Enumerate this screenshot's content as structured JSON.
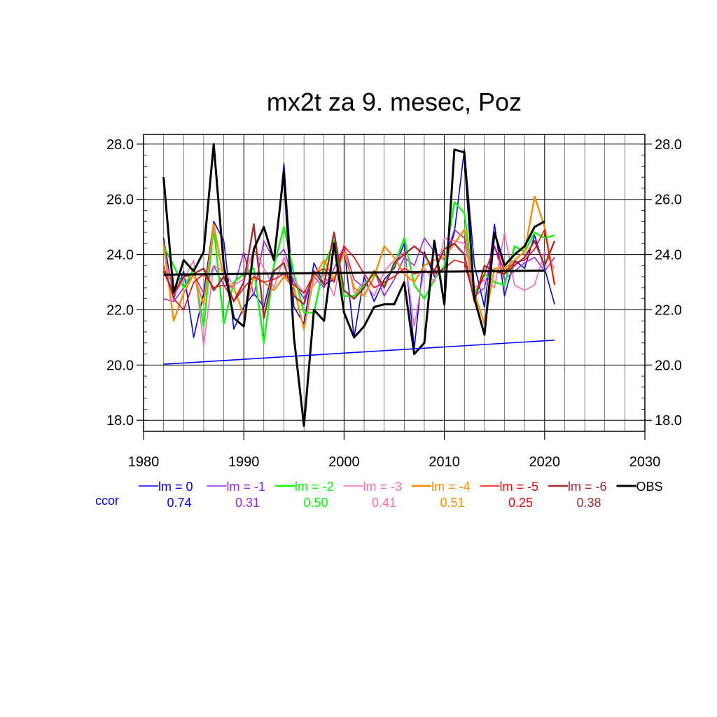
{
  "chart_data": {
    "type": "line",
    "title": "mx2t za 9. mesec, Poz",
    "xlabel": "",
    "ylabel": "",
    "xlim": [
      1980,
      2030
    ],
    "ylim": [
      17.6,
      28.35
    ],
    "x_ticks": [
      "1980",
      "1990",
      "2000",
      "2010",
      "2020",
      "2030"
    ],
    "y_ticks": [
      "18.0",
      "20.0",
      "22.0",
      "24.0",
      "26.0",
      "28.0"
    ],
    "grid": true,
    "legend_position": "bottom",
    "ccor_label": "ccor",
    "series": [
      {
        "name": "lm = 0",
        "color": "#0000ff",
        "ccor": "0.74",
        "width": 1.6,
        "x": [
          1982,
          1983,
          1984,
          1985,
          1986,
          1987,
          1988,
          1989,
          1990,
          1991,
          1992,
          1993,
          1994,
          1995,
          1996,
          1997,
          1998,
          1999,
          2000,
          2001,
          2002,
          2003,
          2004,
          2005,
          2006,
          2007,
          2008,
          2009,
          2010,
          2011,
          2012,
          2013,
          2014,
          2015,
          2016,
          2017,
          2018,
          2019,
          2020,
          2021
        ],
        "y": [
          24.6,
          22.4,
          23.4,
          21.0,
          22.6,
          25.2,
          24.5,
          21.3,
          22.1,
          22.6,
          22.1,
          23.6,
          27.3,
          22.1,
          21.5,
          23.7,
          22.9,
          23.1,
          24.3,
          21.0,
          23.2,
          22.3,
          23.1,
          23.5,
          24.4,
          20.6,
          24.1,
          23.2,
          23.5,
          24.8,
          27.8,
          23.6,
          22.1,
          25.1,
          22.5,
          23.8,
          23.5,
          24.7,
          23.5,
          22.2
        ]
      },
      {
        "name": "lm = -1",
        "color": "#a020f0",
        "ccor": "0.31",
        "width": 1.6,
        "x": [
          1982,
          1983,
          1984,
          1985,
          1986,
          1987,
          1988,
          1989,
          1990,
          1991,
          1992,
          1993,
          1994,
          1995,
          1996,
          1997,
          1998,
          1999,
          2000,
          2001,
          2002,
          2003,
          2004,
          2005,
          2006,
          2007,
          2008,
          2009,
          2010,
          2011,
          2012,
          2013,
          2014,
          2015,
          2016,
          2017,
          2018,
          2019,
          2020,
          2021
        ],
        "y": [
          22.4,
          22.3,
          22.8,
          23.3,
          22.6,
          23.6,
          22.9,
          22.8,
          24.1,
          22.5,
          24.5,
          23.8,
          24.2,
          23.0,
          22.4,
          23.2,
          22.8,
          23.5,
          24.3,
          23.1,
          22.8,
          23.4,
          22.5,
          23.1,
          23.9,
          23.6,
          24.6,
          24.1,
          23.8,
          24.9,
          24.6,
          22.5,
          22.8,
          24.3,
          23.1,
          23.4,
          23.7,
          23.9,
          23.4,
          23.9
        ]
      },
      {
        "name": "lm = -2",
        "color": "#00ff00",
        "ccor": "0.50",
        "width": 2.4,
        "x": [
          1982,
          1983,
          1984,
          1985,
          1986,
          1987,
          1988,
          1989,
          1990,
          1991,
          1992,
          1993,
          1994,
          1995,
          1996,
          1997,
          1998,
          1999,
          2000,
          2001,
          2002,
          2003,
          2004,
          2005,
          2006,
          2007,
          2008,
          2009,
          2010,
          2011,
          2012,
          2013,
          2014,
          2015,
          2016,
          2017,
          2018,
          2019,
          2020,
          2021
        ],
        "y": [
          24.3,
          23.6,
          22.8,
          23.5,
          21.4,
          25.0,
          21.5,
          23.0,
          23.3,
          23.5,
          20.8,
          23.6,
          25.0,
          23.3,
          21.9,
          21.9,
          23.6,
          24.5,
          22.5,
          22.5,
          22.9,
          23.3,
          22.9,
          23.6,
          24.6,
          22.9,
          22.4,
          23.1,
          23.6,
          25.9,
          25.5,
          22.6,
          23.3,
          23.0,
          22.9,
          24.3,
          24.1,
          24.8,
          24.6,
          24.7
        ]
      },
      {
        "name": "lm = -3",
        "color": "#ff69b4",
        "ccor": "0.41",
        "width": 1.6,
        "x": [
          1982,
          1983,
          1984,
          1985,
          1986,
          1987,
          1988,
          1989,
          1990,
          1991,
          1992,
          1993,
          1994,
          1995,
          1996,
          1997,
          1998,
          1999,
          2000,
          2001,
          2002,
          2003,
          2004,
          2005,
          2006,
          2007,
          2008,
          2009,
          2010,
          2011,
          2012,
          2013,
          2014,
          2015,
          2016,
          2017,
          2018,
          2019,
          2020,
          2021
        ],
        "y": [
          24.2,
          22.5,
          23.1,
          23.8,
          20.7,
          23.6,
          23.4,
          22.9,
          23.1,
          24.2,
          23.5,
          22.8,
          23.9,
          23.1,
          22.6,
          22.9,
          23.3,
          22.5,
          24.4,
          22.6,
          23.0,
          22.5,
          23.4,
          23.8,
          24.1,
          21.4,
          23.5,
          23.0,
          24.6,
          24.5,
          24.4,
          22.8,
          23.1,
          22.8,
          24.8,
          22.9,
          22.7,
          22.9,
          24.1,
          23.5
        ]
      },
      {
        "name": "lm = -4",
        "color": "#ff8c00",
        "ccor": "0.51",
        "width": 2.4,
        "x": [
          1982,
          1983,
          1984,
          1985,
          1986,
          1987,
          1988,
          1989,
          1990,
          1991,
          1992,
          1993,
          1994,
          1995,
          1996,
          1997,
          1998,
          1999,
          2000,
          2001,
          2002,
          2003,
          2004,
          2005,
          2006,
          2007,
          2008,
          2009,
          2010,
          2011,
          2012,
          2013,
          2014,
          2015,
          2016,
          2017,
          2018,
          2019,
          2020,
          2021
        ],
        "y": [
          24.4,
          21.6,
          22.6,
          23.3,
          22.2,
          25.1,
          23.1,
          22.8,
          21.8,
          23.2,
          23.0,
          22.7,
          23.2,
          22.8,
          21.3,
          23.2,
          23.8,
          23.1,
          24.1,
          22.8,
          22.5,
          23.2,
          24.3,
          23.9,
          23.3,
          23.0,
          23.6,
          23.8,
          23.9,
          24.4,
          24.9,
          22.6,
          21.5,
          23.5,
          23.5,
          23.8,
          24.1,
          26.1,
          25.0,
          22.9
        ]
      },
      {
        "name": "lm = -5",
        "color": "#ff0000",
        "ccor": "0.25",
        "width": 1.6,
        "x": [
          1982,
          1983,
          1984,
          1985,
          1986,
          1987,
          1988,
          1989,
          1990,
          1991,
          1992,
          1993,
          1994,
          1995,
          1996,
          1997,
          1998,
          1999,
          2000,
          2001,
          2002,
          2003,
          2004,
          2005,
          2006,
          2007,
          2008,
          2009,
          2010,
          2011,
          2012,
          2013,
          2014,
          2015,
          2016,
          2017,
          2018,
          2019,
          2020,
          2021
        ],
        "y": [
          23.6,
          22.4,
          22.0,
          23.0,
          23.3,
          22.8,
          22.9,
          22.3,
          22.8,
          23.2,
          23.0,
          23.1,
          23.3,
          22.9,
          22.6,
          23.3,
          23.5,
          23.0,
          24.3,
          23.9,
          23.3,
          22.8,
          23.0,
          23.2,
          23.5,
          23.3,
          23.4,
          23.3,
          23.5,
          23.8,
          23.7,
          22.4,
          23.3,
          24.3,
          23.4,
          23.7,
          23.8,
          24.2,
          24.9,
          22.9
        ]
      },
      {
        "name": "lm = -6",
        "color": "#a52a2a",
        "ccor": "0.38",
        "width": 2.4,
        "x": [
          1982,
          1983,
          1984,
          1985,
          1986,
          1987,
          1988,
          1989,
          1990,
          1991,
          1992,
          1993,
          1994,
          1995,
          1996,
          1997,
          1998,
          1999,
          2000,
          2001,
          2002,
          2003,
          2004,
          2005,
          2006,
          2007,
          2008,
          2009,
          2010,
          2011,
          2012,
          2013,
          2014,
          2015,
          2016,
          2017,
          2018,
          2019,
          2020,
          2021
        ],
        "y": [
          23.4,
          22.6,
          23.2,
          23.3,
          23.5,
          22.7,
          23.2,
          22.3,
          23.0,
          25.1,
          21.7,
          23.4,
          23.7,
          22.5,
          22.2,
          23.4,
          22.9,
          24.8,
          22.7,
          22.4,
          22.8,
          23.4,
          22.8,
          23.7,
          24.0,
          24.3,
          24.0,
          23.4,
          24.2,
          24.4,
          24.0,
          22.3,
          23.6,
          23.4,
          23.3,
          23.6,
          23.9,
          24.5,
          23.6,
          24.5
        ]
      },
      {
        "name": "OBS",
        "color": "#000000",
        "ccor": "",
        "width": 3,
        "x": [
          1982,
          1983,
          1984,
          1985,
          1986,
          1987,
          1988,
          1989,
          1990,
          1991,
          1992,
          1993,
          1994,
          1995,
          1996,
          1997,
          1998,
          1999,
          2000,
          2001,
          2002,
          2003,
          2004,
          2005,
          2006,
          2007,
          2008,
          2009,
          2010,
          2011,
          2012,
          2013,
          2014,
          2015,
          2016,
          2017,
          2018,
          2019,
          2020
        ],
        "y": [
          26.8,
          22.6,
          23.8,
          23.4,
          24.1,
          28.0,
          23.6,
          21.7,
          21.4,
          24.2,
          25.0,
          23.8,
          27.0,
          21.0,
          17.8,
          22.0,
          21.6,
          24.4,
          21.9,
          21.0,
          21.4,
          22.1,
          22.2,
          22.2,
          23.0,
          20.4,
          20.8,
          24.5,
          22.2,
          27.8,
          27.7,
          22.4,
          21.1,
          24.8,
          23.6,
          24.0,
          24.3,
          25.0,
          25.2
        ]
      }
    ],
    "trend_lines": [
      {
        "color": "#0000ff",
        "width": 1.6,
        "x": [
          1982,
          2021
        ],
        "y": [
          20.03,
          20.9
        ]
      },
      {
        "color": "#000000",
        "width": 3,
        "x": [
          1982,
          2020
        ],
        "y": [
          23.27,
          23.42
        ]
      }
    ]
  }
}
